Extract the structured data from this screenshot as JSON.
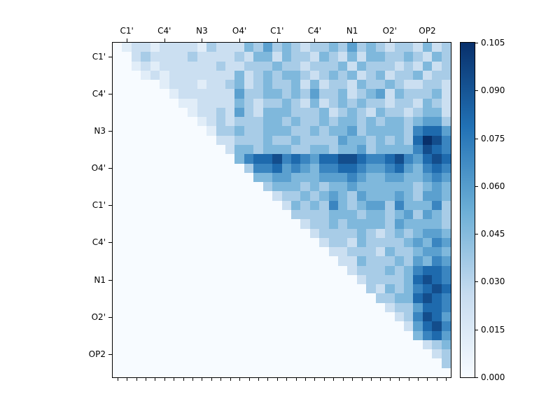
{
  "figure": {
    "background": "#ffffff"
  },
  "chart_data": {
    "type": "heatmap",
    "title": "",
    "xlabel": "",
    "ylabel": "",
    "colormap": "Blues",
    "matrix_size": 36,
    "label_group_size": 4,
    "x_tick_labels": [
      "C1'",
      "C4'",
      "N3",
      "O4'",
      "C1'",
      "C4'",
      "N1",
      "O2'",
      "OP2"
    ],
    "y_tick_labels": [
      "C1'",
      "C4'",
      "N3",
      "O4'",
      "C1'",
      "C4'",
      "N1",
      "O2'",
      "OP2"
    ],
    "value_encoding": "upper-triangular matrix; each character digit d (0-9) in rows maps to value = d/9 * 0.105; lower triangle and diagonal are 0",
    "value_min": 0.0,
    "value_max": 0.105,
    "rows": [
      "012212222132224353432334353432332423",
      "002322223222232442433243242443343243",
      "001212222223223334332333424333232423",
      "000121222222242343443234342342334233",
      "000001222122342343342423324334322332",
      "000000122222253344343533423452433342",
      "000000011222243233432423434332332432",
      "000000001223253244433342343243323442",
      "000000000123233344343343443434434553",
      "000000000013343344433434453444436775",
      "000000000002233343343333544343437986",
      "000000000000244344433443445344446876",
      "000000000000046778676577887667865787",
      "000000000000003667565466776556754676",
      "000000000000000445544455565445544565",
      "000000000000000034443434454444443454",
      "000000000000000002334345435444543554",
      "000000000000000000243436434553644463",
      "000000000000000000033334443443453543",
      "000000000000000000002334344443544443",
      "000000000000000000000233334323434554",
      "000000000000000000000023324333345465",
      "000000000000000000000002233324334554",
      "000000000000000000000000224333435465",
      "000000000000000000000000023334346776",
      "000000000000000000000000002333347876",
      "000000000000000000000000000324346787",
      "000000000000000000000000000033447876",
      "000000000000000000000000000002335776",
      "000000000000000000000000000000236875",
      "000000000000000000000000000000025786",
      "000000000000000000000000000000004675",
      "000000000000000000000000000000000234",
      "000000000000000000000000000000000023",
      "000000000000000000000000000000000003",
      "000000000000000000000000000000000000"
    ],
    "colorbar": {
      "tick_labels": [
        "0.000",
        "0.015",
        "0.030",
        "0.045",
        "0.060",
        "0.075",
        "0.090",
        "0.105"
      ],
      "tick_values": [
        0.0,
        0.015,
        0.03,
        0.045,
        0.06,
        0.075,
        0.09,
        0.105
      ],
      "position": "right"
    },
    "colors": {
      "stops": [
        "#f7fbff",
        "#c6dbef",
        "#6baed6",
        "#2171b5",
        "#08306b"
      ],
      "axis": "#000000"
    },
    "legend": "none",
    "grid": "off"
  }
}
